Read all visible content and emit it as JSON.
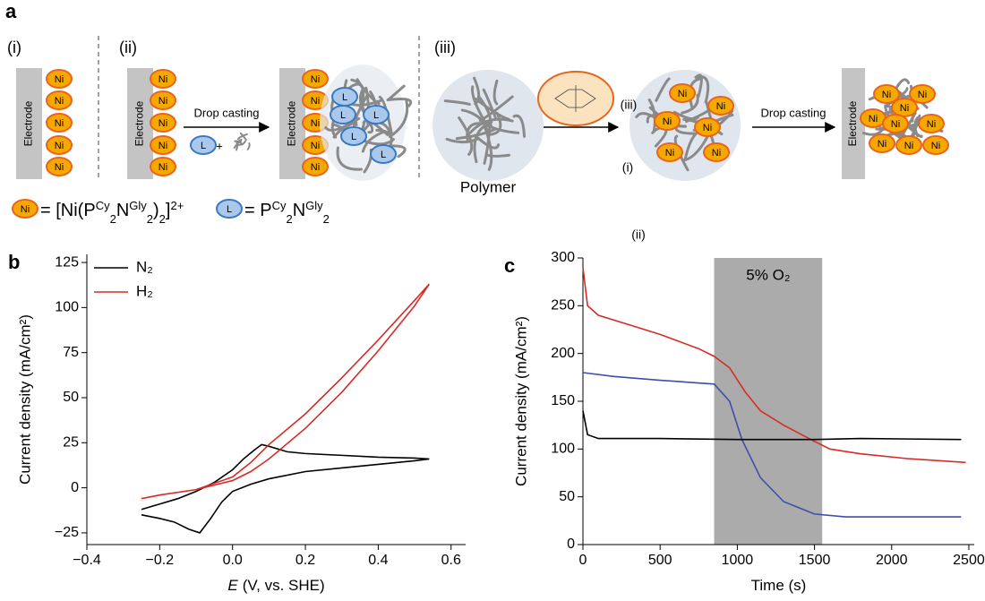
{
  "schematic": {
    "panel_label": "a",
    "sections": [
      "(i)",
      "(ii)",
      "(iii)"
    ],
    "electrode_label": "Electrode",
    "ni_label": "Ni",
    "l_label": "L",
    "plus": "+",
    "step_label": "Drop casting",
    "polymer_label": "Polymer",
    "formula_ni": [
      "= [Ni(P",
      "Cy",
      "2",
      "N",
      "Gly",
      "2",
      ")",
      "2",
      "]",
      "2+"
    ],
    "formula_l": [
      "= P",
      "Cy",
      "2",
      "N",
      "Gly",
      "2"
    ]
  },
  "chart_data": [
    {
      "type": "line",
      "panel_label": "b",
      "ylabel": "Current density (mA/cm²)",
      "xlabel_symbol": "E",
      "xlabel": "(V, vs. SHE)",
      "xlim": [
        -0.4,
        0.64
      ],
      "ylim": [
        -31.5,
        129.5
      ],
      "xticks": [
        {
          "value": -0.4,
          "label": "−0.4"
        },
        {
          "value": -0.2,
          "label": "−0.2"
        },
        {
          "value": 0,
          "label": "0.0"
        },
        0.2,
        0.4,
        0.6
      ],
      "yticks": [
        {
          "value": -25,
          "label": "−25"
        },
        0,
        25,
        50,
        75,
        100,
        125
      ],
      "legend": "upper left",
      "series": [
        {
          "name": "N₂",
          "color": "#000000",
          "x": [
            -0.25,
            -0.2,
            -0.15,
            -0.1,
            -0.05,
            0,
            0.03,
            0.06,
            0.08,
            0.1,
            0.15,
            0.2,
            0.3,
            0.4,
            0.5,
            0.54,
            0.5,
            0.4,
            0.3,
            0.2,
            0.1,
            0.05,
            0,
            -0.03,
            -0.06,
            -0.09,
            -0.12,
            -0.16,
            -0.2,
            -0.25
          ],
          "values": [
            -12,
            -9,
            -6,
            -2,
            3,
            10,
            16,
            21,
            24,
            23,
            20,
            19,
            18,
            17,
            16.5,
            16,
            15,
            13,
            11,
            9,
            5,
            2,
            -2,
            -8,
            -17,
            -25,
            -23,
            -19,
            -17,
            -15
          ]
        },
        {
          "name": "H₂",
          "color": "#d62b27",
          "x": [
            -0.25,
            -0.2,
            -0.1,
            0,
            0.05,
            0.1,
            0.2,
            0.3,
            0.4,
            0.5,
            0.54,
            0.5,
            0.4,
            0.3,
            0.2,
            0.1,
            0.05,
            0,
            -0.1,
            -0.2,
            -0.25
          ],
          "values": [
            -6,
            -4,
            -1,
            6,
            14,
            24,
            41,
            61,
            82,
            104,
            113,
            101,
            76,
            53,
            33,
            16,
            9,
            4,
            -1,
            -4,
            -6
          ]
        }
      ]
    },
    {
      "type": "line",
      "panel_label": "c",
      "ylabel": "Current density (mA/cm²)",
      "xlabel": "Time (s)",
      "xlim": [
        0,
        2535
      ],
      "ylim": [
        0,
        300
      ],
      "xticks": [
        0,
        500,
        1000,
        1500,
        2000,
        2500
      ],
      "yticks": [
        0,
        50,
        100,
        150,
        200,
        250,
        300
      ],
      "shaded_region": [
        850,
        1550
      ],
      "shaded_label": "5% O₂",
      "shaded_color": "#ababab",
      "annotations": [
        "(ii)",
        "(i)",
        "(iii)"
      ],
      "series": [
        {
          "name": "(ii)",
          "color": "#d62b27",
          "x": [
            0,
            30,
            100,
            300,
            500,
            750,
            850,
            950,
            1050,
            1150,
            1300,
            1500,
            1600,
            1800,
            2100,
            2480
          ],
          "values": [
            290,
            250,
            240,
            230,
            220,
            205,
            197,
            185,
            160,
            140,
            125,
            108,
            100,
            95,
            90,
            86
          ]
        },
        {
          "name": "(i)",
          "color": "#3b4fae",
          "x": [
            0,
            200,
            500,
            850,
            950,
            1030,
            1150,
            1300,
            1500,
            1700,
            2000,
            2450
          ],
          "values": [
            180,
            176,
            172,
            168,
            150,
            110,
            70,
            45,
            32,
            29,
            29,
            29
          ]
        },
        {
          "name": "(iii)",
          "color": "#000000",
          "x": [
            0,
            30,
            100,
            500,
            1000,
            1500,
            1800,
            2450
          ],
          "values": [
            140,
            115,
            111,
            111,
            110,
            110,
            111,
            110
          ]
        }
      ]
    }
  ]
}
